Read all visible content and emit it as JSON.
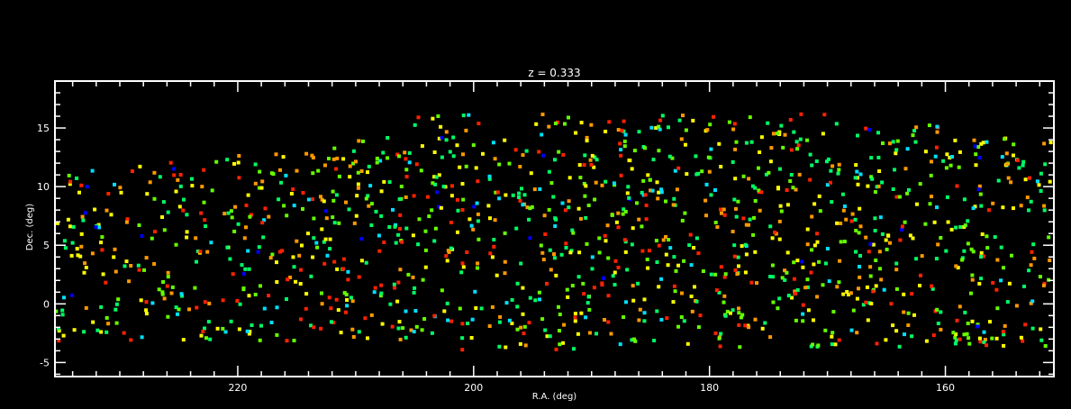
{
  "chart_data": {
    "type": "scatter",
    "title": "z = 0.333",
    "xlabel": "R.A. (deg)",
    "ylabel": "Dec. (deg)",
    "xlim": [
      235.5,
      150.8
    ],
    "ylim": [
      -6.2,
      19.0
    ],
    "x_reversed": true,
    "x_ticks": [
      220,
      200,
      180,
      160
    ],
    "x_tick_labels": [
      "220",
      "200",
      "180",
      "160"
    ],
    "y_ticks": [
      -5,
      0,
      5,
      10,
      15
    ],
    "y_tick_labels": [
      "-5",
      "0",
      "5",
      "10",
      "15"
    ],
    "grid": false,
    "background_color": "#000000",
    "axis_color": "#ffffff",
    "color_scale": [
      "#0000ff",
      "#00e0ff",
      "#00ff66",
      "#66ff00",
      "#ffff00",
      "#ff9900",
      "#ff2200"
    ],
    "n_points": 1400,
    "points": []
  }
}
